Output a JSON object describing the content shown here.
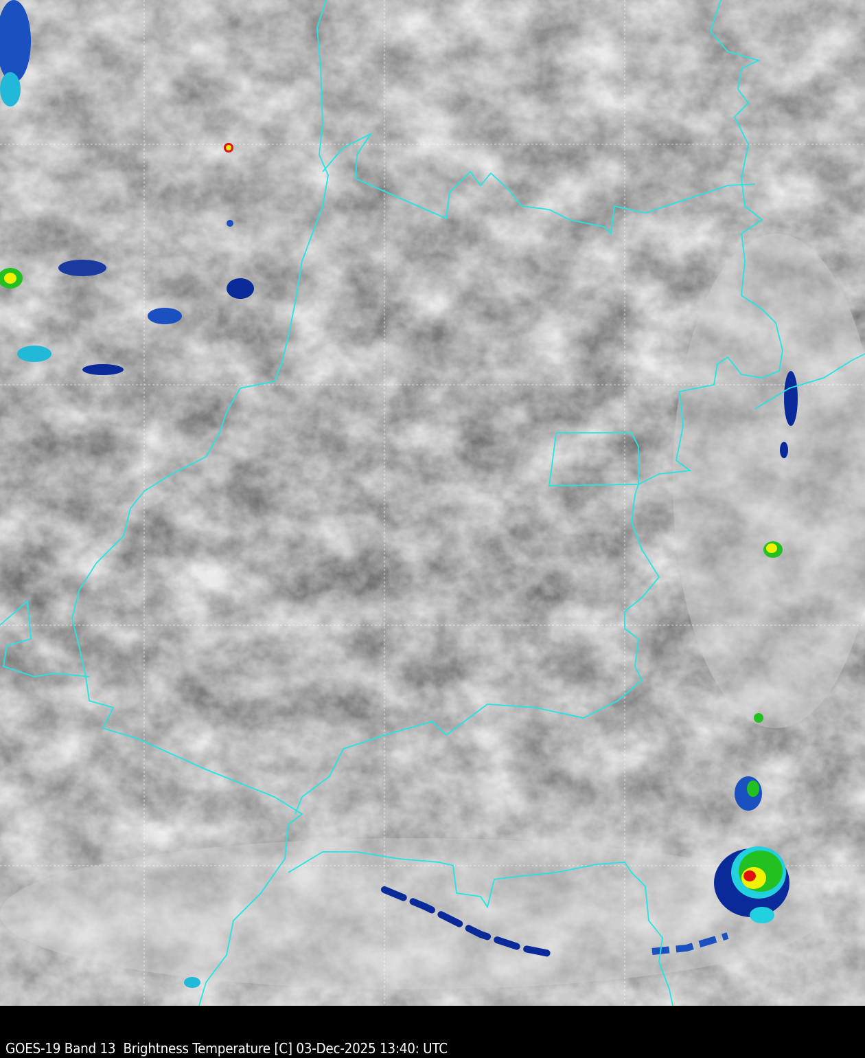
{
  "caption": "GOES-19 Band 13  Brightness Temperature [C] 03-Dec-2025 13:40: UTC",
  "colors": {
    "border": "#22e5e5",
    "grid": "#ffffff",
    "cold_cloud_blue": "#0a2a9a",
    "cold_cloud_cyan": "#22d0e0",
    "cold_cloud_green": "#22c020",
    "cold_cloud_yellow": "#f0f000",
    "cold_cloud_red": "#e01010"
  },
  "map": {
    "type": "satellite infrared imagery",
    "grid": "dashed lat/lon lines",
    "overlay": "cyan state borders"
  }
}
